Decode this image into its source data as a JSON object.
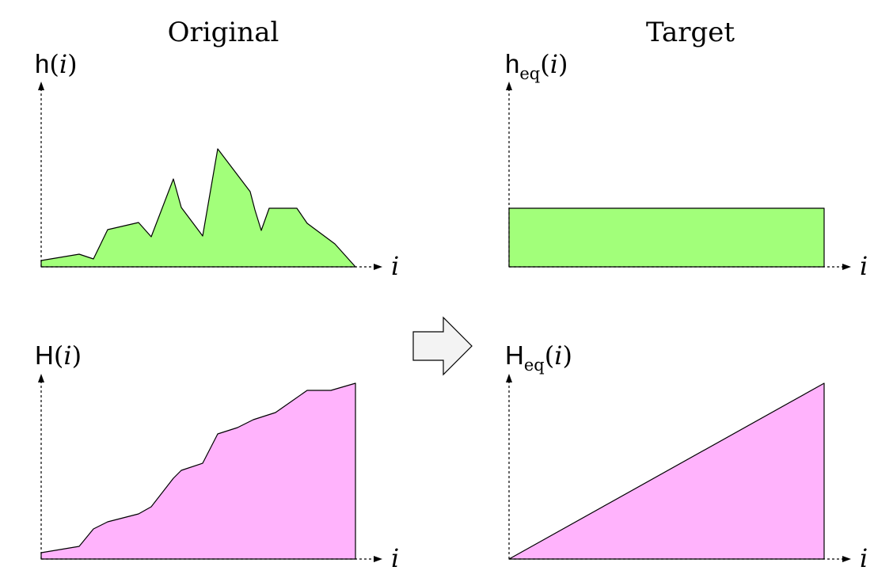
{
  "headings": {
    "left": "Original",
    "right": "Target"
  },
  "panels": {
    "hist": {
      "func": "h",
      "arg": "i"
    },
    "cumhist": {
      "func": "H",
      "arg": "i"
    },
    "hist_eq": {
      "func": "h",
      "sub": "eq",
      "arg": "i"
    },
    "cumhist_eq": {
      "func": "H",
      "sub": "eq",
      "arg": "i"
    }
  },
  "axis_label": "i",
  "colors": {
    "histogram_fill": "#a2ff7a",
    "cumulative_fill": "#ffb3fc",
    "arrow_fill": "#f3f3f3"
  },
  "icons": {
    "transform_arrow": "right-arrow-icon"
  }
}
